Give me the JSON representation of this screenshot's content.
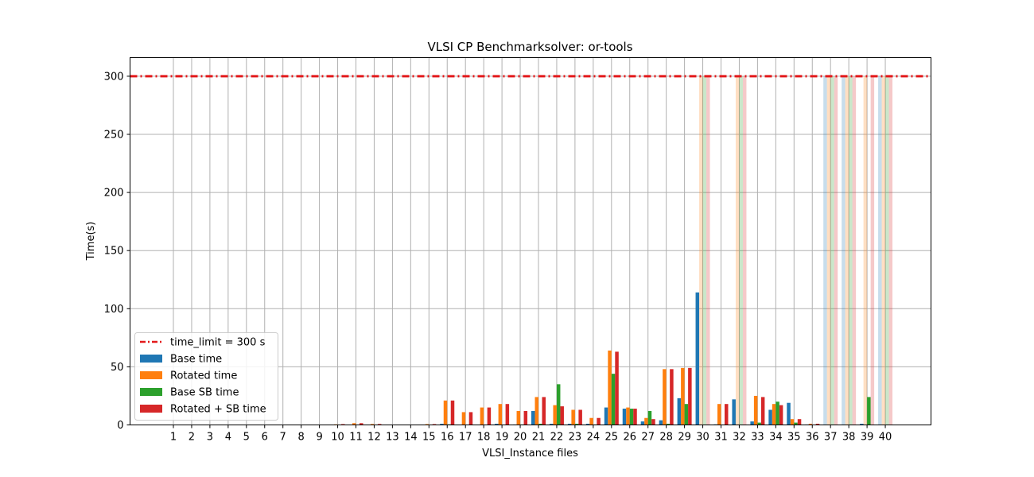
{
  "chart_data": {
    "type": "bar",
    "title": "VLSI CP Benchmarksolver: or-tools",
    "xlabel": "VLSI_Instance files",
    "ylabel": "Time(s)",
    "ylim": [
      0,
      316
    ],
    "y_ticks": [
      0,
      50,
      100,
      150,
      200,
      250,
      300
    ],
    "grid": true,
    "legend_position": "lower-left",
    "categories": [
      "1",
      "2",
      "3",
      "4",
      "5",
      "6",
      "7",
      "8",
      "9",
      "10",
      "11",
      "12",
      "13",
      "14",
      "15",
      "16",
      "17",
      "18",
      "19",
      "20",
      "21",
      "22",
      "23",
      "24",
      "25",
      "26",
      "27",
      "28",
      "29",
      "30",
      "31",
      "32",
      "33",
      "34",
      "35",
      "36",
      "37",
      "38",
      "39",
      "40"
    ],
    "time_limit": {
      "label": "time_limit = 300 s",
      "value": 300,
      "color": "#e31a1c"
    },
    "series": [
      {
        "name": "Base time",
        "color": "#1f77b4",
        "values": [
          0,
          0,
          0,
          0,
          0,
          0,
          0,
          0,
          0,
          0.2,
          0.3,
          0.3,
          0,
          0,
          0.2,
          1,
          0,
          0,
          1,
          0.4,
          12,
          1,
          1,
          1,
          15,
          14,
          3,
          4,
          23,
          114,
          0.5,
          22,
          3,
          13,
          19,
          0.4,
          300,
          300,
          1,
          300
        ],
        "timeout": [
          false,
          false,
          false,
          false,
          false,
          false,
          false,
          false,
          false,
          false,
          false,
          false,
          false,
          false,
          false,
          false,
          false,
          false,
          false,
          false,
          false,
          false,
          false,
          false,
          false,
          false,
          false,
          false,
          false,
          false,
          false,
          false,
          false,
          false,
          false,
          false,
          true,
          true,
          false,
          true
        ]
      },
      {
        "name": "Rotated time",
        "color": "#ff7f0e",
        "values": [
          0,
          0,
          0,
          0,
          0,
          0,
          0,
          0,
          0,
          0.5,
          1.5,
          0.8,
          0,
          0,
          0.7,
          21,
          11,
          15,
          18,
          12,
          24,
          17,
          13,
          6,
          64,
          15,
          6,
          48,
          49,
          300,
          18,
          300,
          25,
          18,
          5,
          1,
          300,
          300,
          300,
          300
        ],
        "timeout": [
          false,
          false,
          false,
          false,
          false,
          false,
          false,
          false,
          false,
          false,
          false,
          false,
          false,
          false,
          false,
          false,
          false,
          false,
          false,
          false,
          false,
          false,
          false,
          false,
          false,
          false,
          false,
          false,
          false,
          true,
          false,
          true,
          false,
          false,
          false,
          false,
          true,
          true,
          true,
          true
        ]
      },
      {
        "name": "Base SB time",
        "color": "#2ca02c",
        "values": [
          0,
          0,
          0,
          0,
          0,
          0,
          0,
          0,
          0,
          0,
          0,
          0,
          0,
          0,
          0,
          0.5,
          0,
          0,
          0.3,
          0.4,
          1,
          35,
          1,
          0.4,
          44,
          14,
          12,
          1,
          18,
          300,
          0.3,
          300,
          2,
          20,
          2,
          0.3,
          300,
          300,
          24,
          300
        ],
        "timeout": [
          false,
          false,
          false,
          false,
          false,
          false,
          false,
          false,
          false,
          false,
          false,
          false,
          false,
          false,
          false,
          false,
          false,
          false,
          false,
          false,
          false,
          false,
          false,
          false,
          false,
          false,
          false,
          false,
          false,
          true,
          false,
          true,
          false,
          false,
          false,
          false,
          true,
          true,
          false,
          true
        ]
      },
      {
        "name": "Rotated + SB time",
        "color": "#d62728",
        "values": [
          0,
          0,
          0,
          0,
          0,
          0,
          0,
          0,
          0,
          0.7,
          1.5,
          0.8,
          0,
          0,
          0.7,
          21,
          11,
          15,
          18,
          12,
          24,
          16,
          13,
          6,
          63,
          14,
          5,
          48,
          49,
          300,
          18,
          300,
          24,
          17,
          5,
          1,
          300,
          300,
          300,
          300
        ],
        "timeout": [
          false,
          false,
          false,
          false,
          false,
          false,
          false,
          false,
          false,
          false,
          false,
          false,
          false,
          false,
          false,
          false,
          false,
          false,
          false,
          false,
          false,
          false,
          false,
          false,
          false,
          false,
          false,
          false,
          false,
          true,
          false,
          true,
          false,
          false,
          false,
          false,
          true,
          true,
          true,
          true
        ]
      }
    ]
  }
}
